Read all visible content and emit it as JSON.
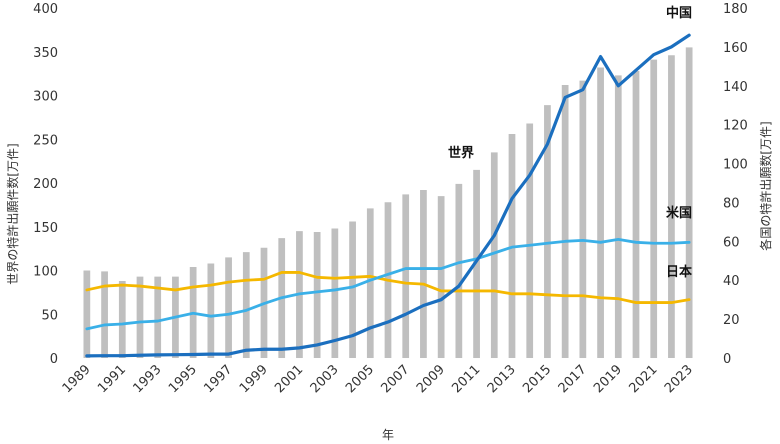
{
  "chart_data": {
    "type": "bar+line",
    "title": "",
    "xlabel": "年",
    "ylabel_left": "世界の特許出願件数[万件]",
    "ylabel_right": "各国の特許出願数[万件]",
    "years": [
      1989,
      1990,
      1991,
      1992,
      1993,
      1994,
      1995,
      1996,
      1997,
      1998,
      1999,
      2000,
      2001,
      2002,
      2003,
      2004,
      2005,
      2006,
      2007,
      2008,
      2009,
      2010,
      2011,
      2012,
      2013,
      2014,
      2015,
      2016,
      2017,
      2018,
      2019,
      2020,
      2021,
      2022,
      2023
    ],
    "x_tick_labels": [
      "1989",
      "1991",
      "1993",
      "1995",
      "1997",
      "1999",
      "2001",
      "2003",
      "2005",
      "2007",
      "2009",
      "2011",
      "2013",
      "2015",
      "2017",
      "2019",
      "2021",
      "2023"
    ],
    "left_axis": {
      "min": 0,
      "max": 400,
      "ticks": [
        0,
        50,
        100,
        150,
        200,
        250,
        300,
        350,
        400
      ]
    },
    "right_axis": {
      "min": 0,
      "max": 180,
      "ticks": [
        0,
        20,
        40,
        60,
        80,
        100,
        120,
        140,
        160,
        180
      ]
    },
    "bars": {
      "name": "世界",
      "axis": "left",
      "color": "#BFBFBF",
      "values": [
        100,
        99,
        88,
        93,
        93,
        93,
        104,
        108,
        115,
        121,
        126,
        137,
        145,
        144,
        148,
        156,
        171,
        178,
        187,
        192,
        185,
        199,
        215,
        235,
        256,
        268,
        289,
        312,
        317,
        332,
        323,
        328,
        341,
        346,
        355
      ]
    },
    "lines": [
      {
        "name": "中国",
        "axis": "right",
        "color": "#1B6FBF",
        "values": [
          1.1,
          1.2,
          1.2,
          1.4,
          1.6,
          1.7,
          1.8,
          2.0,
          2.0,
          4.0,
          4.5,
          4.5,
          5.2,
          6.7,
          9.0,
          11.5,
          15.5,
          18.5,
          22.5,
          27,
          30,
          37,
          50,
          63,
          82,
          94,
          110,
          134,
          138,
          155,
          140,
          148,
          156,
          160,
          166
        ]
      },
      {
        "name": "米国",
        "axis": "right",
        "color": "#3AB0E8",
        "values": [
          15,
          17,
          17.5,
          18.5,
          19,
          21,
          23,
          21.5,
          22.5,
          24.5,
          28,
          31,
          33,
          34,
          35,
          36.5,
          40,
          43,
          46,
          46,
          46,
          49,
          51,
          54,
          57,
          58,
          59,
          60,
          60.5,
          59.5,
          61,
          59.5,
          59,
          59,
          59.5
        ]
      },
      {
        "name": "日本",
        "axis": "right",
        "color": "#F5B800",
        "values": [
          35,
          37,
          37.5,
          37,
          36,
          35,
          36.5,
          37.5,
          39,
          40,
          40.5,
          44,
          44,
          41.5,
          41,
          41.5,
          42,
          40,
          38.5,
          38,
          34.5,
          34.5,
          34.5,
          34.5,
          33,
          33,
          32.5,
          32,
          32,
          31,
          30.5,
          28.5,
          28.5,
          28.5,
          30
        ]
      }
    ]
  },
  "labels": {
    "series_world": "世界",
    "series_china": "中国",
    "series_us": "米国",
    "series_japan": "日本"
  }
}
